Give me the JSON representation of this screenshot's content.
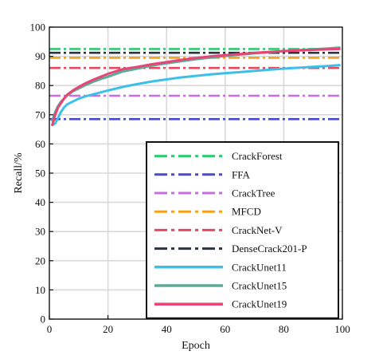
{
  "chart_data": {
    "type": "line",
    "title": "",
    "xlabel": "Epoch",
    "ylabel": "Recall/%",
    "xlim": [
      0,
      100
    ],
    "ylim": [
      0,
      100
    ],
    "xticks": [
      0,
      20,
      40,
      60,
      80,
      100
    ],
    "yticks": [
      0,
      10,
      20,
      30,
      40,
      50,
      60,
      70,
      80,
      90,
      100
    ],
    "grid": true,
    "legend_position": "bottom-right",
    "series": [
      {
        "name": "CrackForest",
        "color": "#2ecc71",
        "style": "dashdot",
        "x": [
          0,
          100
        ],
        "y": [
          92.5,
          92.5
        ]
      },
      {
        "name": "FFA",
        "color": "#4a4acd",
        "style": "dashdot",
        "x": [
          0,
          100
        ],
        "y": [
          68.5,
          68.5
        ]
      },
      {
        "name": "CrackTree",
        "color": "#c86de4",
        "style": "dashdot",
        "x": [
          0,
          100
        ],
        "y": [
          76.5,
          76.5
        ]
      },
      {
        "name": "MFCD",
        "color": "#f5a21b",
        "style": "dashdot",
        "x": [
          0,
          100
        ],
        "y": [
          89.5,
          89.5
        ]
      },
      {
        "name": "CrackNet-V",
        "color": "#e8485c",
        "style": "dashdot",
        "x": [
          0,
          100
        ],
        "y": [
          86,
          86
        ]
      },
      {
        "name": "DenseCrack201-P",
        "color": "#2b3140",
        "style": "dashdot",
        "x": [
          0,
          100
        ],
        "y": [
          91.2,
          91.2
        ]
      },
      {
        "name": "CrackUnet11",
        "color": "#3cc0ea",
        "style": "solid",
        "x": [
          1,
          2,
          3,
          4,
          5,
          6,
          8,
          10,
          12,
          15,
          18,
          20,
          25,
          30,
          35,
          40,
          45,
          50,
          55,
          60,
          65,
          70,
          75,
          80,
          85,
          90,
          95,
          99
        ],
        "y": [
          66.5,
          67,
          69,
          71,
          72.5,
          73.5,
          74.5,
          75.5,
          76.2,
          77,
          77.8,
          78.3,
          79.5,
          80.5,
          81.4,
          82.1,
          82.8,
          83.3,
          83.8,
          84.2,
          84.6,
          85,
          85.4,
          85.8,
          86.1,
          86.4,
          86.7,
          87
        ]
      },
      {
        "name": "CrackUnet15",
        "color": "#5aab98",
        "style": "solid",
        "x": [
          1,
          2,
          3,
          4,
          5,
          6,
          8,
          10,
          12,
          15,
          18,
          20,
          25,
          30,
          35,
          40,
          45,
          50,
          55,
          60,
          65,
          70,
          75,
          80,
          85,
          90,
          95,
          99
        ],
        "y": [
          68,
          71,
          73,
          74.5,
          75.5,
          76.5,
          78,
          79,
          80,
          81.3,
          82.4,
          83,
          84.8,
          85.8,
          86.8,
          87.6,
          88.3,
          89,
          89.6,
          90.1,
          90.6,
          91,
          91.4,
          91.8,
          92.1,
          92.4,
          92.7,
          93
        ]
      },
      {
        "name": "CrackUnet19",
        "color": "#e84576",
        "style": "solid",
        "x": [
          1,
          2,
          3,
          4,
          5,
          6,
          8,
          10,
          12,
          15,
          18,
          20,
          25,
          30,
          35,
          40,
          45,
          50,
          55,
          60,
          65,
          70,
          75,
          80,
          85,
          90,
          95,
          99
        ],
        "y": [
          66.5,
          70,
          72.5,
          74,
          75.5,
          76.8,
          78.3,
          79.5,
          80.6,
          82,
          83.2,
          84,
          85.6,
          86.4,
          87.3,
          88,
          88.8,
          89.4,
          90,
          90.4,
          90.8,
          91.2,
          91.5,
          91.8,
          92,
          92.2,
          92.4,
          92.5
        ]
      }
    ]
  }
}
